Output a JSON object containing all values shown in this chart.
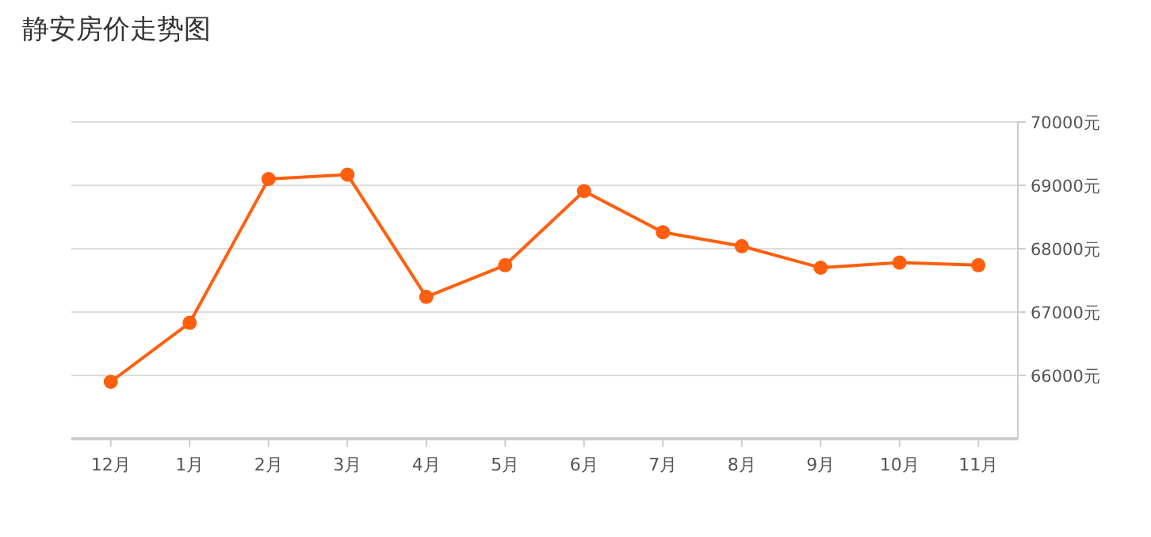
{
  "chart_data": {
    "type": "line",
    "title": "静安房价走势图",
    "categories": [
      "12月",
      "1月",
      "2月",
      "3月",
      "4月",
      "5月",
      "6月",
      "7月",
      "8月",
      "9月",
      "10月",
      "11月"
    ],
    "series": [
      {
        "color": "#ff5f0f",
        "values": [
          65900,
          66830,
          69100,
          69170,
          67240,
          67740,
          68910,
          68260,
          68040,
          67700,
          67780,
          67740
        ]
      }
    ],
    "ylim": [
      65000,
      70000
    ],
    "yticks": [
      {
        "value": 66000,
        "label": "66000元"
      },
      {
        "value": 67000,
        "label": "67000元"
      },
      {
        "value": 68000,
        "label": "68000元"
      },
      {
        "value": 69000,
        "label": "69000元"
      },
      {
        "value": 70000,
        "label": "70000元"
      }
    ],
    "grid": "y",
    "marker": "circle",
    "line_style": "solid"
  }
}
